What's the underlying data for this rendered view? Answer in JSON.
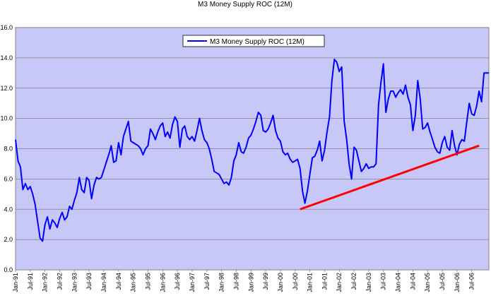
{
  "chart_data": {
    "type": "line",
    "title": "M3 Money Supply ROC (12M)",
    "xlabel": "",
    "ylabel": "",
    "ylim": [
      0,
      16
    ],
    "yticks": [
      "0.0",
      "2.0",
      "4.0",
      "6.0",
      "8.0",
      "10.0",
      "12.0",
      "14.0",
      "16.0"
    ],
    "xticks": [
      "Jan-91",
      "Jul-91",
      "Jan-92",
      "Jul-92",
      "Jan-93",
      "Jul-93",
      "Jan-94",
      "Jul-94",
      "Jan-95",
      "Jul-95",
      "Jan-96",
      "Jul-96",
      "Jan-97",
      "Jul-97",
      "Jan-98",
      "Jul-98",
      "Jan-99",
      "Jul-99",
      "Jan-00",
      "Jul-00",
      "Jan-01",
      "Jul-01",
      "Jan-02",
      "Jul-02",
      "Jan-03",
      "Jul-03",
      "Jan-04",
      "Jul-04",
      "Jan-05",
      "Jul-05",
      "Jan-06",
      "Jul-06"
    ],
    "grid": "horizontal",
    "legend": "top-center",
    "colors": {
      "plot_bg": "#c8c8f8",
      "series": "#0000ff",
      "trendline": "#ff0000"
    },
    "series": [
      {
        "name": "M3 Money Supply ROC (12M)",
        "values": [
          8.6,
          7.2,
          6.8,
          5.3,
          5.7,
          5.3,
          5.5,
          5.0,
          4.3,
          3.2,
          2.1,
          1.9,
          3.0,
          3.5,
          2.7,
          3.3,
          3.1,
          2.8,
          3.4,
          3.8,
          3.3,
          3.5,
          4.2,
          4.0,
          4.6,
          5.1,
          6.1,
          5.3,
          5.1,
          6.1,
          5.9,
          4.7,
          5.6,
          6.1,
          6.0,
          6.1,
          6.6,
          7.1,
          7.6,
          8.2,
          7.1,
          7.2,
          8.4,
          7.6,
          8.8,
          9.3,
          9.8,
          8.5,
          8.4,
          8.3,
          8.2,
          8.0,
          7.6,
          8.0,
          8.2,
          9.3,
          9.0,
          8.6,
          9.1,
          9.5,
          9.7,
          8.8,
          9.1,
          8.7,
          9.6,
          10.1,
          9.8,
          8.1,
          9.3,
          9.5,
          8.8,
          8.6,
          8.8,
          8.5,
          9.2,
          10.0,
          9.2,
          8.6,
          8.4,
          8.0,
          7.3,
          6.5,
          6.4,
          6.3,
          6.0,
          5.7,
          5.8,
          5.6,
          6.1,
          7.2,
          7.6,
          8.4,
          7.8,
          7.7,
          8.1,
          8.7,
          8.9,
          9.3,
          9.8,
          10.4,
          10.2,
          9.2,
          9.1,
          9.3,
          9.7,
          10.2,
          9.2,
          8.7,
          8.5,
          7.8,
          7.6,
          7.7,
          7.3,
          7.1,
          7.2,
          7.3,
          6.7,
          5.2,
          4.4,
          5.2,
          6.3,
          7.4,
          7.5,
          7.9,
          8.5,
          7.2,
          7.9,
          9.1,
          10.1,
          12.5,
          13.9,
          13.7,
          13.1,
          13.4,
          9.8,
          8.6,
          7.0,
          6.0,
          8.1,
          7.9,
          7.2,
          6.5,
          6.7,
          7.0,
          6.7,
          6.8,
          6.8,
          7.0,
          10.9,
          12.4,
          13.6,
          10.4,
          11.3,
          11.8,
          11.8,
          11.4,
          11.7,
          11.9,
          11.6,
          12.2,
          11.4,
          10.9,
          9.2,
          10.2,
          12.5,
          11.3,
          9.3,
          9.4,
          9.7,
          9.1,
          8.6,
          8.1,
          7.8,
          7.7,
          8.4,
          8.8,
          8.1,
          7.9,
          9.2,
          8.2,
          7.6,
          8.3,
          8.6,
          8.5,
          9.8,
          11.0,
          10.3,
          10.2,
          10.8,
          11.8,
          11.1,
          13.0,
          13.0,
          13.0
        ],
        "x_start": "Jan-91",
        "frequency": "monthly"
      },
      {
        "name": "",
        "type": "trendline",
        "points": [
          {
            "x": "Sep-00",
            "y": 4.0
          },
          {
            "x": "Oct-06",
            "y": 8.2
          }
        ]
      }
    ]
  }
}
